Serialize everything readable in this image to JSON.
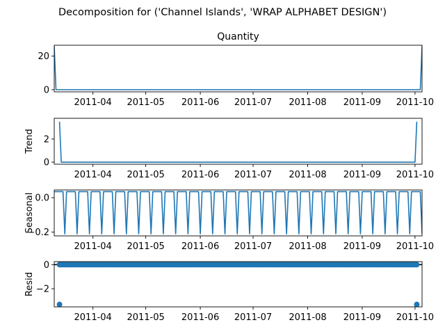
{
  "figure": {
    "title": "Decomposition for ('Channel Islands', 'WRAP ALPHABET DESIGN')"
  },
  "colors": {
    "series": "#1f77b4",
    "axis": "#000000",
    "background": "#ffffff"
  },
  "chart_data": [
    {
      "type": "line",
      "name": "observed",
      "title": "Quantity",
      "ylabel": "",
      "x_range": [
        "2011-03-10",
        "2011-10-05"
      ],
      "ylim": [
        -1.3,
        26.5
      ],
      "yticks": [
        {
          "v": 0,
          "label": "0"
        },
        {
          "v": 20,
          "label": "20"
        }
      ],
      "xticks": [
        {
          "date": "2011-04-01",
          "label": "2011-04"
        },
        {
          "date": "2011-05-01",
          "label": "2011-05"
        },
        {
          "date": "2011-06-01",
          "label": "2011-06"
        },
        {
          "date": "2011-07-01",
          "label": "2011-07"
        },
        {
          "date": "2011-08-01",
          "label": "2011-08"
        },
        {
          "date": "2011-09-01",
          "label": "2011-09"
        },
        {
          "date": "2011-10-01",
          "label": "2011-10"
        }
      ],
      "points": [
        [
          "2011-03-10",
          26
        ],
        [
          "2011-03-11",
          0
        ],
        [
          "2011-10-04",
          0
        ],
        [
          "2011-10-05",
          26
        ]
      ]
    },
    {
      "type": "line",
      "name": "trend",
      "title": "",
      "ylabel": "Trend",
      "x_range": [
        "2011-03-10",
        "2011-10-05"
      ],
      "ylim": [
        -0.18,
        3.8
      ],
      "yticks": [
        {
          "v": 0,
          "label": "0"
        },
        {
          "v": 2,
          "label": "2"
        }
      ],
      "xticks": [
        {
          "date": "2011-04-01",
          "label": "2011-04"
        },
        {
          "date": "2011-05-01",
          "label": "2011-05"
        },
        {
          "date": "2011-06-01",
          "label": "2011-06"
        },
        {
          "date": "2011-07-01",
          "label": "2011-07"
        },
        {
          "date": "2011-08-01",
          "label": "2011-08"
        },
        {
          "date": "2011-09-01",
          "label": "2011-09"
        },
        {
          "date": "2011-10-01",
          "label": "2011-10"
        }
      ],
      "points": [
        [
          "2011-03-13",
          3.5
        ],
        [
          "2011-03-14",
          0
        ],
        [
          "2011-10-01",
          0
        ],
        [
          "2011-10-02",
          3.5
        ]
      ]
    },
    {
      "type": "line",
      "name": "seasonal",
      "title": "",
      "ylabel": "Seasonal",
      "x_range": [
        "2011-03-10",
        "2011-10-05"
      ],
      "ylim": [
        -0.222,
        0.045
      ],
      "yticks": [
        {
          "v": 0,
          "label": "0.0"
        },
        {
          "v": -0.2,
          "label": "−0.2"
        }
      ],
      "xticks": [
        {
          "date": "2011-04-01",
          "label": "2011-04"
        },
        {
          "date": "2011-05-01",
          "label": "2011-05"
        },
        {
          "date": "2011-06-01",
          "label": "2011-06"
        },
        {
          "date": "2011-07-01",
          "label": "2011-07"
        },
        {
          "date": "2011-08-01",
          "label": "2011-08"
        },
        {
          "date": "2011-09-01",
          "label": "2011-09"
        },
        {
          "date": "2011-10-01",
          "label": "2011-10"
        }
      ],
      "pattern": {
        "start": "2011-03-10",
        "end": "2011-10-05",
        "period_days": 7,
        "weekly_values": [
          0.035,
          0.035,
          0.035,
          0.035,
          0.035,
          0.035,
          -0.21
        ]
      }
    },
    {
      "type": "scatter",
      "name": "resid",
      "title": "",
      "ylabel": "Resid",
      "x_range": [
        "2011-03-10",
        "2011-10-05"
      ],
      "ylim": [
        -3.5,
        0.25
      ],
      "yticks": [
        {
          "v": 0,
          "label": "0"
        },
        {
          "v": -2,
          "label": "−2"
        }
      ],
      "xticks": [
        {
          "date": "2011-04-01",
          "label": "2011-04"
        },
        {
          "date": "2011-05-01",
          "label": "2011-05"
        },
        {
          "date": "2011-06-01",
          "label": "2011-06"
        },
        {
          "date": "2011-07-01",
          "label": "2011-07"
        },
        {
          "date": "2011-08-01",
          "label": "2011-08"
        },
        {
          "date": "2011-09-01",
          "label": "2011-09"
        },
        {
          "date": "2011-10-01",
          "label": "2011-10"
        }
      ],
      "zero_line": true,
      "points_range": {
        "start": "2011-03-13",
        "end": "2011-10-02",
        "value": 0
      },
      "outliers": [
        [
          "2011-03-13",
          -3.3
        ],
        [
          "2011-10-02",
          -3.3
        ]
      ]
    }
  ]
}
